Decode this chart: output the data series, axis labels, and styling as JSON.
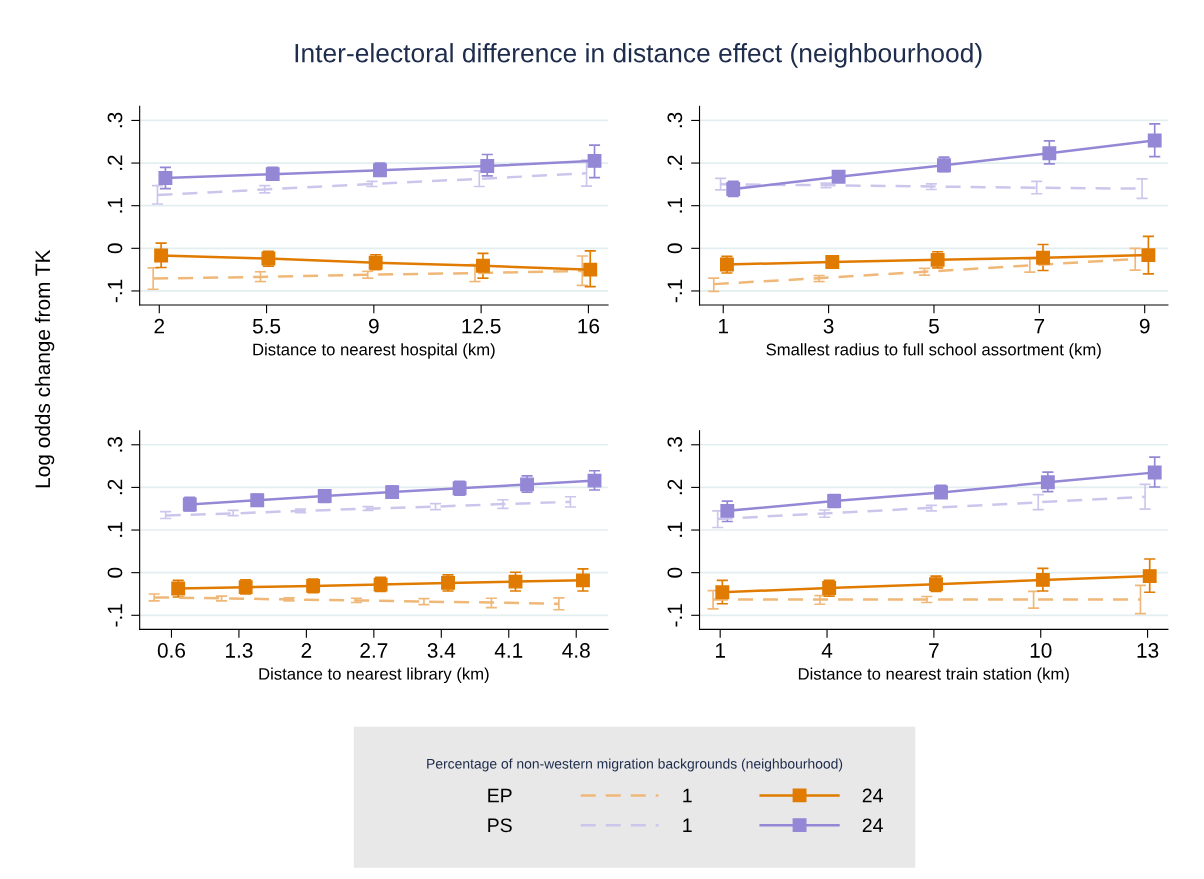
{
  "chart_data": [
    {
      "type": "line",
      "title": "Inter-electoral difference in distance effect (neighbourhood)",
      "ylabel": "Log odds change from TK",
      "legend": "bottom",
      "legend_title": "Percentage of non-western migration backgrounds (neighbourhood)",
      "annotations": [
        "EP",
        "PS"
      ],
      "xlabel": "Distance to nearest hospital (km)",
      "xlim": [
        1.36,
        16.64
      ],
      "xticks": [
        2,
        5.5,
        9,
        12.5,
        16
      ],
      "ylim": [
        -0.133,
        0.333
      ],
      "yticks": [
        {
          "value": -0.1,
          "label": "-.1"
        },
        0,
        {
          "value": 0.1,
          "label": ".1"
        },
        {
          "value": 0.2,
          "label": ".2"
        },
        {
          "value": 0.3,
          "label": ".3"
        }
      ],
      "grid": "y",
      "series": [
        {
          "name": "1",
          "color": "#f0b878",
          "line_style": "dashed",
          "marker": "none",
          "x": [
            1.8,
            5.3,
            8.8,
            12.3,
            15.8
          ],
          "values": [
            -0.071,
            -0.067,
            -0.062,
            -0.058,
            -0.053
          ],
          "errors": [
            [
              -0.096,
              -0.046
            ],
            [
              -0.078,
              -0.055
            ],
            [
              -0.07,
              -0.054
            ],
            [
              -0.078,
              -0.038
            ],
            [
              -0.087,
              -0.018
            ]
          ]
        },
        {
          "name": "1",
          "color": "#cdc6ec",
          "line_style": "dashed",
          "marker": "none",
          "x": [
            1.94,
            5.44,
            8.94,
            12.44,
            15.94
          ],
          "values": [
            0.125,
            0.138,
            0.151,
            0.163,
            0.176
          ],
          "errors": [
            [
              0.104,
              0.147
            ],
            [
              0.13,
              0.147
            ],
            [
              0.145,
              0.157
            ],
            [
              0.145,
              0.182
            ],
            [
              0.146,
              0.207
            ]
          ]
        },
        {
          "name": "24",
          "color": "#e07b00",
          "line_style": "solid",
          "marker": "square",
          "x": [
            2.06,
            5.56,
            9.06,
            12.56,
            16.06
          ],
          "values": [
            -0.017,
            -0.024,
            -0.034,
            -0.041,
            -0.05
          ],
          "errors": [
            [
              -0.045,
              0.012
            ],
            [
              -0.042,
              -0.007
            ],
            [
              -0.05,
              -0.015
            ],
            [
              -0.07,
              -0.012
            ],
            [
              -0.09,
              -0.006
            ]
          ]
        },
        {
          "name": "24",
          "color": "#9488d6",
          "line_style": "solid",
          "marker": "square",
          "x": [
            2.2,
            5.7,
            9.2,
            12.7,
            16.2
          ],
          "values": [
            0.165,
            0.174,
            0.183,
            0.193,
            0.205
          ],
          "errors": [
            [
              0.14,
              0.19
            ],
            [
              0.16,
              0.19
            ],
            [
              0.17,
              0.2
            ],
            [
              0.17,
              0.22
            ],
            [
              0.166,
              0.242
            ]
          ]
        }
      ]
    },
    {
      "type": "line",
      "xlabel": "Smallest radius to full school assortment (km)",
      "xlim": [
        0.55,
        9.44
      ],
      "xticks": [
        1,
        3,
        5,
        7,
        9
      ],
      "ylim": [
        -0.133,
        0.333
      ],
      "yticks": [
        {
          "value": -0.1,
          "label": "-.1"
        },
        0,
        {
          "value": 0.1,
          "label": ".1"
        },
        {
          "value": 0.2,
          "label": ".2"
        },
        {
          "value": 0.3,
          "label": ".3"
        }
      ],
      "grid": "y",
      "series": [
        {
          "color": "#f0b878",
          "line_style": "dashed",
          "marker": "none",
          "x": [
            0.82,
            2.82,
            4.82,
            6.82,
            8.82
          ],
          "values": [
            -0.084,
            -0.07,
            -0.055,
            -0.04,
            -0.025
          ],
          "errors": [
            [
              -0.101,
              -0.07
            ],
            [
              -0.078,
              -0.064
            ],
            [
              -0.063,
              -0.047
            ],
            [
              -0.056,
              -0.024
            ],
            [
              -0.051,
              0.0
            ]
          ]
        },
        {
          "color": "#cdc6ec",
          "line_style": "dashed",
          "marker": "none",
          "x": [
            0.95,
            2.95,
            4.95,
            6.95,
            8.95
          ],
          "values": [
            0.15,
            0.148,
            0.145,
            0.142,
            0.14
          ],
          "errors": [
            [
              0.137,
              0.164
            ],
            [
              0.142,
              0.153
            ],
            [
              0.138,
              0.151
            ],
            [
              0.128,
              0.157
            ],
            [
              0.117,
              0.163
            ]
          ]
        },
        {
          "color": "#e07b00",
          "line_style": "solid",
          "marker": "square",
          "x": [
            1.07,
            3.07,
            5.07,
            7.07,
            9.07
          ],
          "values": [
            -0.038,
            -0.032,
            -0.027,
            -0.022,
            -0.016
          ],
          "errors": [
            [
              -0.058,
              -0.019
            ],
            [
              -0.046,
              -0.018
            ],
            [
              -0.046,
              -0.008
            ],
            [
              -0.052,
              0.009
            ],
            [
              -0.06,
              0.028
            ]
          ]
        },
        {
          "color": "#9488d6",
          "line_style": "solid",
          "marker": "square",
          "x": [
            1.19,
            3.19,
            5.19,
            7.19,
            9.19
          ],
          "values": [
            0.139,
            0.168,
            0.195,
            0.223,
            0.253
          ],
          "errors": [
            [
              0.122,
              0.157
            ],
            [
              0.155,
              0.182
            ],
            [
              0.18,
              0.214
            ],
            [
              0.198,
              0.252
            ],
            [
              0.215,
              0.292
            ]
          ]
        }
      ]
    },
    {
      "type": "line",
      "xlabel": "Distance to nearest library (km)",
      "xlim": [
        0.27,
        5.13
      ],
      "xticks": [
        0.6,
        1.3,
        2,
        2.7,
        3.4,
        4.1,
        4.8
      ],
      "ylim": [
        -0.133,
        0.333
      ],
      "yticks": [
        {
          "value": -0.1,
          "label": "-.1"
        },
        0,
        {
          "value": 0.1,
          "label": ".1"
        },
        {
          "value": 0.2,
          "label": ".2"
        },
        {
          "value": 0.3,
          "label": ".3"
        }
      ],
      "grid": "y",
      "series": [
        {
          "color": "#f0b878",
          "line_style": "dashed",
          "marker": "none",
          "x": [
            0.42,
            1.12,
            1.82,
            2.52,
            3.22,
            3.92,
            4.62
          ],
          "values": [
            -0.058,
            -0.06,
            -0.063,
            -0.065,
            -0.068,
            -0.07,
            -0.073
          ],
          "errors": [
            [
              -0.066,
              -0.05
            ],
            [
              -0.066,
              -0.055
            ],
            [
              -0.066,
              -0.059
            ],
            [
              -0.07,
              -0.06
            ],
            [
              -0.075,
              -0.061
            ],
            [
              -0.082,
              -0.06
            ],
            [
              -0.087,
              -0.059
            ]
          ]
        },
        {
          "color": "#cdc6ec",
          "line_style": "dashed",
          "marker": "none",
          "x": [
            0.54,
            1.24,
            1.94,
            2.64,
            3.34,
            4.04,
            4.74
          ],
          "values": [
            0.134,
            0.139,
            0.145,
            0.15,
            0.155,
            0.161,
            0.166
          ],
          "errors": [
            [
              0.127,
              0.143
            ],
            [
              0.134,
              0.146
            ],
            [
              0.141,
              0.149
            ],
            [
              0.146,
              0.155
            ],
            [
              0.148,
              0.162
            ],
            [
              0.151,
              0.171
            ],
            [
              0.154,
              0.178
            ]
          ]
        },
        {
          "color": "#e07b00",
          "line_style": "solid",
          "marker": "square",
          "x": [
            0.67,
            1.37,
            2.07,
            2.77,
            3.47,
            4.17,
            4.87
          ],
          "values": [
            -0.037,
            -0.034,
            -0.031,
            -0.028,
            -0.024,
            -0.021,
            -0.018
          ],
          "errors": [
            [
              -0.057,
              -0.018
            ],
            [
              -0.05,
              -0.017
            ],
            [
              -0.047,
              -0.015
            ],
            [
              -0.044,
              -0.011
            ],
            [
              -0.043,
              -0.005
            ],
            [
              -0.043,
              0.001
            ],
            [
              -0.043,
              0.009
            ]
          ]
        },
        {
          "color": "#9488d6",
          "line_style": "solid",
          "marker": "square",
          "x": [
            0.79,
            1.49,
            2.19,
            2.89,
            3.59,
            4.29,
            4.99
          ],
          "values": [
            0.16,
            0.17,
            0.18,
            0.189,
            0.198,
            0.207,
            0.216
          ],
          "errors": [
            [
              0.145,
              0.177
            ],
            [
              0.156,
              0.184
            ],
            [
              0.165,
              0.194
            ],
            [
              0.175,
              0.203
            ],
            [
              0.182,
              0.214
            ],
            [
              0.189,
              0.227
            ],
            [
              0.194,
              0.239
            ]
          ]
        }
      ]
    },
    {
      "type": "line",
      "xlabel": "Distance to nearest train station (km)",
      "xlim": [
        0.42,
        13.57
      ],
      "xticks": [
        1,
        4,
        7,
        10,
        13
      ],
      "ylim": [
        -0.133,
        0.333
      ],
      "yticks": [
        {
          "value": -0.1,
          "label": "-.1"
        },
        0,
        {
          "value": 0.1,
          "label": ".1"
        },
        {
          "value": 0.2,
          "label": ".2"
        },
        {
          "value": 0.3,
          "label": ".3"
        }
      ],
      "grid": "y",
      "series": [
        {
          "color": "#f0b878",
          "line_style": "dashed",
          "marker": "none",
          "x": [
            0.8,
            3.8,
            6.8,
            9.8,
            12.8
          ],
          "values": [
            -0.063,
            -0.063,
            -0.063,
            -0.063,
            -0.063
          ],
          "errors": [
            [
              -0.085,
              -0.042
            ],
            [
              -0.074,
              -0.054
            ],
            [
              -0.07,
              -0.056
            ],
            [
              -0.083,
              -0.044
            ],
            [
              -0.096,
              -0.03
            ]
          ]
        },
        {
          "color": "#cdc6ec",
          "line_style": "dashed",
          "marker": "none",
          "x": [
            0.93,
            3.93,
            6.93,
            9.93,
            12.93
          ],
          "values": [
            0.126,
            0.139,
            0.152,
            0.165,
            0.178
          ],
          "errors": [
            [
              0.106,
              0.145
            ],
            [
              0.13,
              0.147
            ],
            [
              0.145,
              0.158
            ],
            [
              0.148,
              0.183
            ],
            [
              0.149,
              0.207
            ]
          ]
        },
        {
          "color": "#e07b00",
          "line_style": "solid",
          "marker": "square",
          "x": [
            1.06,
            4.06,
            7.06,
            10.06,
            13.06
          ],
          "values": [
            -0.046,
            -0.036,
            -0.027,
            -0.017,
            -0.008
          ],
          "errors": [
            [
              -0.073,
              -0.018
            ],
            [
              -0.055,
              -0.018
            ],
            [
              -0.044,
              -0.008
            ],
            [
              -0.043,
              0.01
            ],
            [
              -0.046,
              0.032
            ]
          ]
        },
        {
          "color": "#9488d6",
          "line_style": "solid",
          "marker": "square",
          "x": [
            1.2,
            4.2,
            7.2,
            10.2,
            13.2
          ],
          "values": [
            0.145,
            0.168,
            0.188,
            0.212,
            0.235
          ],
          "errors": [
            [
              0.12,
              0.168
            ],
            [
              0.153,
              0.183
            ],
            [
              0.175,
              0.205
            ],
            [
              0.19,
              0.236
            ],
            [
              0.201,
              0.271
            ]
          ]
        }
      ]
    }
  ]
}
